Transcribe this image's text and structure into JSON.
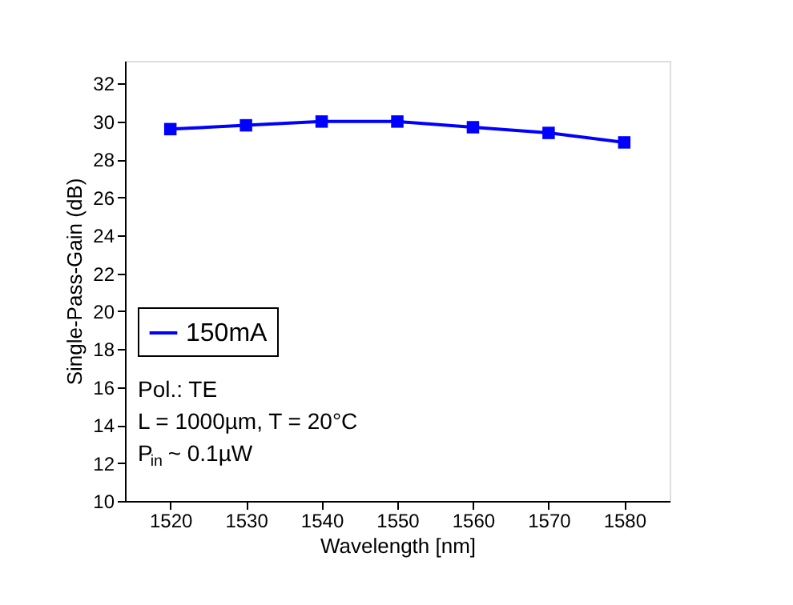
{
  "chart_data": {
    "type": "line",
    "xlabel": "Wavelength [nm]",
    "ylabel": "Single-Pass-Gain (dB)",
    "x": [
      1520,
      1530,
      1540,
      1550,
      1560,
      1570,
      1580
    ],
    "series": [
      {
        "name": "150mA",
        "color": "#0000ff",
        "values": [
          29.6,
          29.8,
          30.0,
          30.0,
          29.7,
          29.4,
          28.9
        ]
      }
    ],
    "xlim": [
      1514,
      1586
    ],
    "xticks": [
      1520,
      1530,
      1540,
      1550,
      1560,
      1570,
      1580
    ],
    "ylim": [
      10,
      33.2
    ],
    "yticks": [
      10,
      12,
      14,
      16,
      18,
      20,
      22,
      24,
      26,
      28,
      30,
      32
    ],
    "annotations": [
      "Pol.: TE",
      "L = 1000µm, T = 20°C",
      "P$_{in}$ ~ 0.1µW"
    ],
    "marker": "square",
    "line_style": "solid",
    "grid": false,
    "legend": "left"
  }
}
